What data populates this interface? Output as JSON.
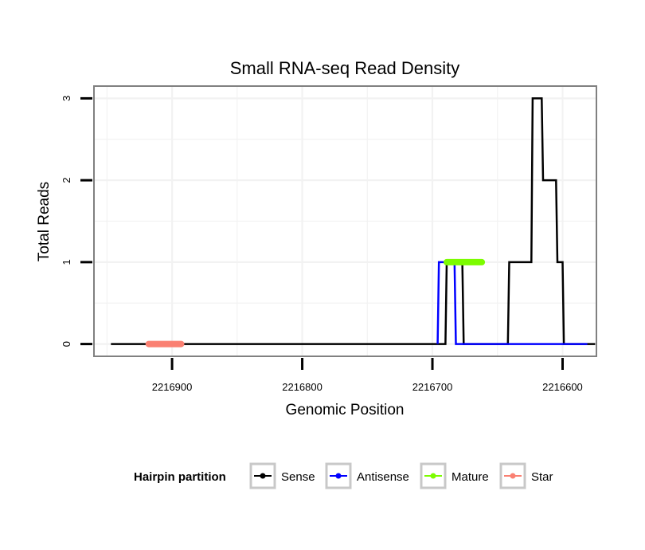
{
  "chart_data": {
    "type": "line",
    "title": "Small RNA-seq Read Density",
    "xlabel": "Genomic Position",
    "ylabel": "Total Reads",
    "x_reversed": true,
    "xlim": [
      2216960,
      2216574
    ],
    "ylim": [
      -0.15,
      3.15
    ],
    "x_ticks": [
      2216900,
      2216800,
      2216700,
      2216600
    ],
    "x_tick_labels": [
      "2216900",
      "2216800",
      "2216700",
      "2216600"
    ],
    "y_ticks": [
      0,
      1,
      2,
      3
    ],
    "y_tick_labels": [
      "0",
      "1",
      "2",
      "3"
    ],
    "grid": true,
    "legend": {
      "title": "Hairpin partition",
      "position": "bottom",
      "entries": [
        {
          "name": "Sense",
          "color": "#000000"
        },
        {
          "name": "Antisense",
          "color": "#0000ff"
        },
        {
          "name": "Mature",
          "color": "#7cfc00"
        },
        {
          "name": "Star",
          "color": "#fa8072"
        }
      ]
    },
    "series": [
      {
        "name": "Sense",
        "color": "#000000",
        "points": [
          [
            2216947,
            0
          ],
          [
            2216690,
            0
          ],
          [
            2216689,
            1
          ],
          [
            2216677,
            1
          ],
          [
            2216676,
            0
          ],
          [
            2216642,
            0
          ],
          [
            2216641,
            1
          ],
          [
            2216624,
            1
          ],
          [
            2216623,
            3
          ],
          [
            2216616,
            3
          ],
          [
            2216615,
            2
          ],
          [
            2216605,
            2
          ],
          [
            2216604,
            1
          ],
          [
            2216600,
            1
          ],
          [
            2216599,
            0
          ],
          [
            2216575,
            0
          ]
        ]
      },
      {
        "name": "Antisense",
        "color": "#0000ff",
        "points": [
          [
            2216696,
            0
          ],
          [
            2216695,
            1
          ],
          [
            2216683,
            1
          ],
          [
            2216682,
            0
          ],
          [
            2216581,
            0
          ]
        ]
      },
      {
        "name": "Mature",
        "color": "#7cfc00",
        "points": [
          [
            2216689,
            1
          ],
          [
            2216662,
            1
          ]
        ]
      },
      {
        "name": "Star",
        "color": "#fa8072",
        "points": [
          [
            2216918,
            0
          ],
          [
            2216893,
            0
          ]
        ]
      }
    ]
  }
}
